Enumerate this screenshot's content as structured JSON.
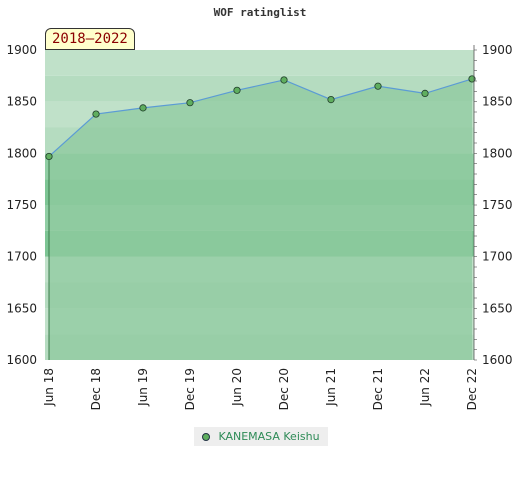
{
  "chart_data": {
    "type": "area",
    "title": "WOF ratinglist",
    "badge": "2018–2022",
    "x_labels": [
      "Jun 18",
      "Dec 18",
      "Jun 19",
      "Dec 19",
      "Jun 20",
      "Dec 20",
      "Jun 21",
      "Dec 21",
      "Jun 22",
      "Dec 22"
    ],
    "series": [
      {
        "name": "KANEMASA Keishu",
        "values": [
          1797,
          1838,
          1844,
          1849,
          1861,
          1871,
          1852,
          1865,
          1858,
          1872
        ]
      }
    ],
    "ylim": [
      1600,
      1900
    ],
    "yticks": [
      1600,
      1650,
      1700,
      1750,
      1800,
      1850,
      1900
    ],
    "grid": true,
    "legend_position": "bottom",
    "colors": {
      "line": "#5b9bd5",
      "fill": "#8fca9f",
      "band_light": "#b5dcc0",
      "band_dark": "#7dc594",
      "marker": "#5fae5f"
    }
  }
}
